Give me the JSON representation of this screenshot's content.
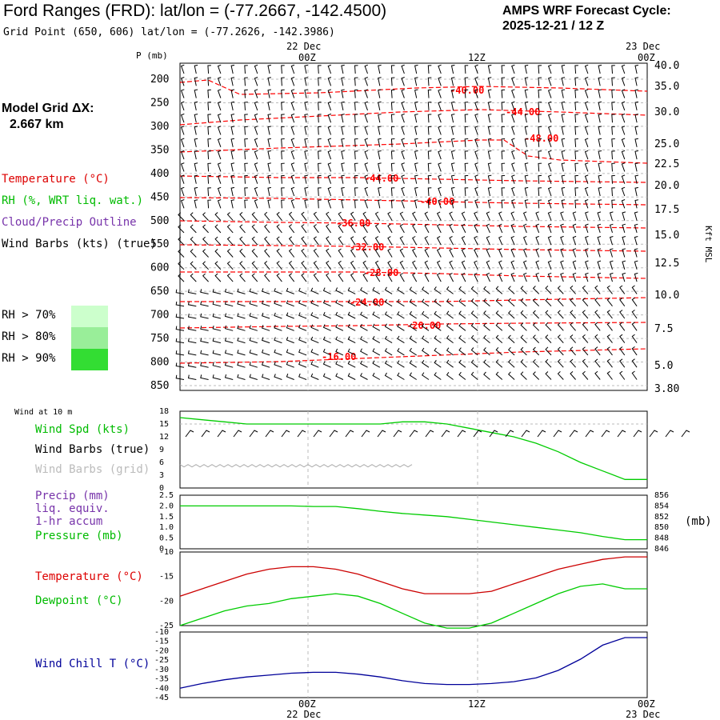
{
  "header": {
    "title": "Ford Ranges (FRD):  lat/lon = (-77.2667, -142.4500)",
    "subtitle": "Grid Point (650, 606) lat/lon = (-77.2626, -142.3986)",
    "cycle_line1": "AMPS WRF Forecast Cycle:",
    "cycle_line2": "2025-12-21 / 12  Z"
  },
  "grid": {
    "label": "Model Grid ΔX:",
    "value": "2.667 km"
  },
  "legend": {
    "temperature": "Temperature (°C)",
    "rh": "RH (%, WRT liq. wat.)",
    "cloud": "Cloud/Precip Outline",
    "wind": "Wind Barbs (kts) (true)",
    "rh70": "RH > 70%",
    "rh80": "RH > 80%",
    "rh90": "RH > 90%",
    "colors": {
      "rh70": "#ccffcc",
      "rh80": "#99ee99",
      "rh90": "#33dd33"
    }
  },
  "panel_labels": {
    "wind10m": "Wind at 10 m",
    "wind_spd": "Wind Spd (kts)",
    "wind_barbs_true": "Wind Barbs (true)",
    "wind_barbs_grid": "Wind Barbs (grid)",
    "precip1": "Precip (mm)",
    "precip2": "liq. equiv.",
    "precip3": "1-hr accum",
    "pressure": "Pressure (mb)",
    "pressure_unit": "(mb)",
    "temperature": "Temperature (°C)",
    "dewpoint": "Dewpoint (°C)",
    "windchill": "Wind Chill T (°C)"
  },
  "time_axis": {
    "top": [
      {
        "date": "22 Dec",
        "hour": "00Z"
      },
      {
        "date": "",
        "hour": "12Z"
      },
      {
        "date": "23 Dec",
        "hour": "00Z"
      }
    ],
    "bottom": [
      {
        "hour": "00Z",
        "date": "22 Dec"
      },
      {
        "hour": "12Z",
        "date": ""
      },
      {
        "hour": "00Z",
        "date": "23 Dec"
      }
    ]
  },
  "chart_data": [
    {
      "type": "line",
      "name": "cross-section",
      "ylabel": "P (mb)",
      "y2label": "Kft MSL",
      "pressure_levels": [
        200,
        250,
        300,
        350,
        400,
        450,
        500,
        550,
        600,
        650,
        700,
        750,
        800,
        850
      ],
      "height_ticks": [
        "40.0",
        "35.0",
        "30.0",
        "25.0",
        "22.5",
        "20.0",
        "17.5",
        "15.0",
        "12.5",
        "10.0",
        "7.5",
        "5.0",
        "3.80"
      ],
      "temperature_labels": [
        "-40.00",
        "-44.00",
        "-48.00",
        "-44.00",
        "-40.00",
        "-36.00",
        "-32.00",
        "-28.00",
        "-24.00",
        "-20.00",
        "-16.00"
      ],
      "series_color": "#ff0000"
    },
    {
      "type": "line",
      "name": "wind-10m",
      "ylim": [
        0,
        18
      ],
      "yticks": [
        0,
        3,
        6,
        9,
        12,
        15,
        18
      ],
      "wind_speed_kts": [
        16.5,
        16,
        15.5,
        15,
        15,
        15,
        15,
        15,
        15,
        15,
        15.5,
        15.5,
        15,
        14,
        13,
        12,
        10.5,
        8.5,
        6,
        4,
        2,
        2
      ],
      "color": "#00cc00"
    },
    {
      "type": "line",
      "name": "precip-pressure",
      "ylim": [
        0,
        2.5
      ],
      "yticks": [
        "0",
        "0.5",
        "1.0",
        "1.5",
        "2.0",
        "2.5"
      ],
      "y2ticks": [
        "846",
        "848",
        "850",
        "852",
        "854",
        "856"
      ],
      "pressure_mb": [
        854,
        854,
        854,
        854,
        854,
        854,
        853.9,
        853.9,
        853.5,
        853,
        852.6,
        852.3,
        852,
        851.5,
        851,
        850.5,
        850,
        849.5,
        849,
        848.3,
        847.7,
        847.7
      ],
      "color": "#00cc00"
    },
    {
      "type": "line",
      "name": "temperature-dewpoint",
      "ylim": [
        -25,
        -10
      ],
      "yticks": [
        "-10",
        "-15",
        "-20",
        "-25"
      ],
      "series": [
        {
          "name": "Temperature",
          "color": "#cc0000",
          "values": [
            -19,
            -17.5,
            -16,
            -14.5,
            -13.5,
            -13,
            -13,
            -13.5,
            -14.5,
            -16,
            -17.5,
            -18.5,
            -18.5,
            -18.5,
            -18,
            -16.5,
            -15,
            -13.5,
            -12.5,
            -11.5,
            -11,
            -11
          ]
        },
        {
          "name": "Dewpoint",
          "color": "#00cc00",
          "values": [
            -25,
            -23.5,
            -22,
            -21,
            -20.5,
            -19.5,
            -19,
            -18.5,
            -19,
            -20.5,
            -22.5,
            -24.5,
            -25.5,
            -25.5,
            -24.5,
            -22.5,
            -20.5,
            -18.5,
            -17,
            -16.5,
            -17.5,
            -17.5
          ]
        }
      ]
    },
    {
      "type": "line",
      "name": "wind-chill",
      "ylim": [
        -45,
        -10
      ],
      "yticks": [
        "-10",
        "-15",
        "-20",
        "-25",
        "-30",
        "-35",
        "-40",
        "-45"
      ],
      "series": [
        {
          "name": "Wind Chill",
          "color": "#000099",
          "values": [
            -40,
            -37.5,
            -35.5,
            -34,
            -33,
            -32,
            -31.5,
            -31.5,
            -32.5,
            -34,
            -36,
            -37.5,
            -38,
            -38,
            -37.5,
            -36.5,
            -34.5,
            -30.5,
            -24.5,
            -17,
            -13,
            -13
          ]
        }
      ]
    }
  ]
}
